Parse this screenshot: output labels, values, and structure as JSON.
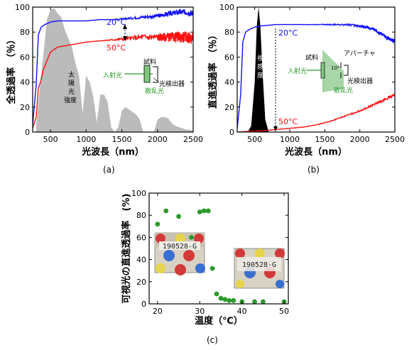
{
  "chart_data": [
    {
      "type": "line",
      "panel_label": "(a)",
      "xlabel": "光波長（nm）",
      "ylabel": "全透過率　（％）",
      "xlim": [
        250,
        2500
      ],
      "ylim": [
        0,
        100
      ],
      "xticks": [
        "500",
        "1000",
        "1500",
        "2000",
        "2500"
      ],
      "yticks": [
        "0",
        "20",
        "40",
        "60",
        "80",
        "100"
      ],
      "series": [
        {
          "name": "20°C",
          "color": "#1010ff",
          "x": [
            250,
            300,
            330,
            370,
            420,
            500,
            600,
            800,
            1000,
            1200,
            1400,
            1600,
            1800,
            2000,
            2100,
            2200,
            2300,
            2400,
            2500
          ],
          "y": [
            6,
            38,
            78,
            84,
            86,
            88,
            89,
            89,
            89,
            90,
            90,
            91,
            92,
            93,
            94,
            95,
            96,
            96,
            95
          ]
        },
        {
          "name": "50°C",
          "color": "#ff1010",
          "x": [
            250,
            300,
            330,
            360,
            400,
            500,
            600,
            800,
            1000,
            1200,
            1400,
            1600,
            1800,
            2000,
            2100,
            2200,
            2300,
            2400,
            2500
          ],
          "y": [
            3,
            12,
            35,
            40,
            50,
            64,
            68,
            70,
            72,
            73,
            74,
            75,
            76,
            76,
            76,
            76,
            76,
            76,
            75
          ]
        }
      ],
      "spectrum": {
        "name": "太陽光強度",
        "color": "#bbbbbb",
        "x": [
          300,
          350,
          400,
          450,
          500,
          550,
          600,
          650,
          700,
          750,
          800,
          850,
          900,
          950,
          1000,
          1050,
          1100,
          1150,
          1200,
          1250,
          1300,
          1350,
          1400,
          1450,
          1500,
          1550,
          1600,
          1650,
          1700,
          1750,
          1800,
          1850,
          1900,
          1950,
          2000,
          2050,
          2100,
          2150,
          2200,
          2250,
          2300,
          2350,
          2400,
          2450,
          2500
        ],
        "y": [
          5,
          35,
          62,
          90,
          98,
          99,
          95,
          92,
          82,
          75,
          68,
          55,
          45,
          15,
          45,
          40,
          28,
          8,
          30,
          30,
          24,
          4,
          0,
          4,
          17,
          20,
          18,
          16,
          14,
          10,
          0,
          0,
          0,
          0,
          10,
          12,
          12,
          11,
          7,
          5,
          4,
          3,
          2,
          2,
          1
        ]
      },
      "annotations": {
        "spectrum_label": "太陽光強度",
        "sample": "試料",
        "incident": "入射光",
        "detector": "光検出器",
        "scattered": "散乱光"
      }
    },
    {
      "type": "line",
      "panel_label": "(b)",
      "xlabel": "光波長（nm）",
      "ylabel": "直進透過率　（％）",
      "xlim": [
        250,
        2500
      ],
      "ylim": [
        0,
        100
      ],
      "xticks": [
        "500",
        "1000",
        "1500",
        "2000",
        "2500"
      ],
      "yticks": [
        "0",
        "20",
        "40",
        "60",
        "80",
        "100"
      ],
      "series": [
        {
          "name": "20°C",
          "color": "#1010ff",
          "x": [
            250,
            300,
            330,
            370,
            420,
            500,
            600,
            800,
            1000,
            1200,
            1400,
            1600,
            1800,
            2000,
            2100,
            2200,
            2300,
            2400,
            2450,
            2500
          ],
          "y": [
            3,
            30,
            72,
            80,
            82,
            84,
            85,
            86,
            86,
            86,
            86,
            86,
            86,
            85,
            84,
            82,
            79,
            75,
            74,
            73
          ]
        },
        {
          "name": "50°C",
          "color": "#ff1010",
          "x": [
            250,
            400,
            600,
            800,
            1000,
            1200,
            1400,
            1600,
            1800,
            2000,
            2200,
            2400,
            2500
          ],
          "y": [
            0,
            0.5,
            1,
            2,
            3,
            4,
            6,
            9,
            13,
            17,
            22,
            27,
            30
          ]
        }
      ],
      "spectrum": {
        "name": "視感度",
        "color": "#000000",
        "x": [
          400,
          450,
          500,
          530,
          555,
          580,
          610,
          650,
          700
        ],
        "y": [
          0,
          5,
          40,
          85,
          100,
          85,
          50,
          10,
          0
        ]
      },
      "annotations": {
        "spectrum_label": "視感度",
        "aperture": "アパーチャ",
        "sample": "試料",
        "incident": "入射光",
        "angle": "10°",
        "detector": "光検出器",
        "scattered": "散乱光"
      }
    },
    {
      "type": "scatter",
      "panel_label": "(c)",
      "xlabel": "温度（℃）",
      "ylabel": "可視光の直進透過率　(%)",
      "xlim": [
        18,
        51
      ],
      "ylim": [
        0,
        100
      ],
      "xticks": [
        "20",
        "30",
        "40",
        "50"
      ],
      "yticks": [
        "0",
        "20",
        "40",
        "60",
        "80",
        "100"
      ],
      "series": [
        {
          "color": "#2a9a2a",
          "x": [
            20,
            22,
            25,
            28,
            30,
            31,
            32,
            33,
            34,
            35,
            36,
            37,
            38,
            40,
            43,
            45,
            50
          ],
          "y": [
            72,
            84,
            79,
            60,
            83,
            84,
            84,
            32,
            9,
            5,
            4,
            3,
            3,
            2,
            2,
            2,
            2
          ]
        }
      ],
      "inset_labels": [
        "190528-G",
        "190528-G"
      ]
    }
  ]
}
